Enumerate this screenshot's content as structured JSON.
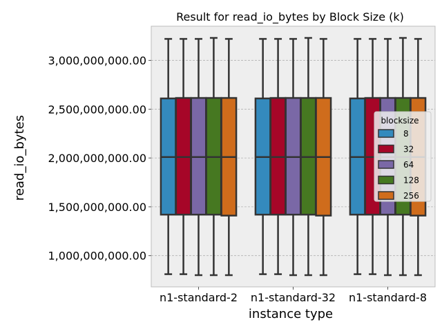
{
  "chart_data": {
    "type": "box",
    "title": "Result for read_io_bytes by Block Size (k)",
    "xlabel": "instance type",
    "ylabel": "read_io_bytes",
    "categories": [
      "n1-standard-2",
      "n1-standard-32",
      "n1-standard-8"
    ],
    "ylim": [
      680000000,
      3350000000
    ],
    "yticks": [
      1000000000,
      1500000000,
      2000000000,
      2500000000,
      3000000000
    ],
    "ytick_labels": [
      "1,000,000,000.00",
      "1,500,000,000.00",
      "2,000,000,000.00",
      "2,500,000,000.00",
      "3,000,000,000.00"
    ],
    "grid": true,
    "legend": {
      "title": "blocksize",
      "placement": "right"
    },
    "series": [
      {
        "name": "8",
        "color": "#348abd",
        "boxes": [
          {
            "whislo": 810000000,
            "q1": 1420000000,
            "med": 2010000000,
            "q3": 2610000000,
            "whishi": 3220000000
          },
          {
            "whislo": 810000000,
            "q1": 1420000000,
            "med": 2010000000,
            "q3": 2610000000,
            "whishi": 3220000000
          },
          {
            "whislo": 810000000,
            "q1": 1420000000,
            "med": 2010000000,
            "q3": 2610000000,
            "whishi": 3220000000
          }
        ]
      },
      {
        "name": "32",
        "color": "#a60628",
        "boxes": [
          {
            "whislo": 810000000,
            "q1": 1420000000,
            "med": 2010000000,
            "q3": 2615000000,
            "whishi": 3220000000
          },
          {
            "whislo": 810000000,
            "q1": 1420000000,
            "med": 2010000000,
            "q3": 2615000000,
            "whishi": 3220000000
          },
          {
            "whislo": 810000000,
            "q1": 1420000000,
            "med": 2010000000,
            "q3": 2615000000,
            "whishi": 3220000000
          }
        ]
      },
      {
        "name": "64",
        "color": "#7a68a6",
        "boxes": [
          {
            "whislo": 800000000,
            "q1": 1420000000,
            "med": 2010000000,
            "q3": 2615000000,
            "whishi": 3220000000
          },
          {
            "whislo": 800000000,
            "q1": 1420000000,
            "med": 2010000000,
            "q3": 2615000000,
            "whishi": 3220000000
          },
          {
            "whislo": 800000000,
            "q1": 1420000000,
            "med": 2010000000,
            "q3": 2615000000,
            "whishi": 3220000000
          }
        ]
      },
      {
        "name": "128",
        "color": "#467821",
        "boxes": [
          {
            "whislo": 800000000,
            "q1": 1420000000,
            "med": 2010000000,
            "q3": 2615000000,
            "whishi": 3230000000
          },
          {
            "whislo": 800000000,
            "q1": 1420000000,
            "med": 2010000000,
            "q3": 2615000000,
            "whishi": 3230000000
          },
          {
            "whislo": 800000000,
            "q1": 1420000000,
            "med": 2010000000,
            "q3": 2615000000,
            "whishi": 3230000000
          }
        ]
      },
      {
        "name": "256",
        "color": "#cf6c1c",
        "boxes": [
          {
            "whislo": 800000000,
            "q1": 1410000000,
            "med": 2010000000,
            "q3": 2615000000,
            "whishi": 3220000000
          },
          {
            "whislo": 800000000,
            "q1": 1410000000,
            "med": 2010000000,
            "q3": 2615000000,
            "whishi": 3220000000
          },
          {
            "whislo": 800000000,
            "q1": 1410000000,
            "med": 2010000000,
            "q3": 2615000000,
            "whishi": 3220000000
          }
        ]
      }
    ]
  }
}
